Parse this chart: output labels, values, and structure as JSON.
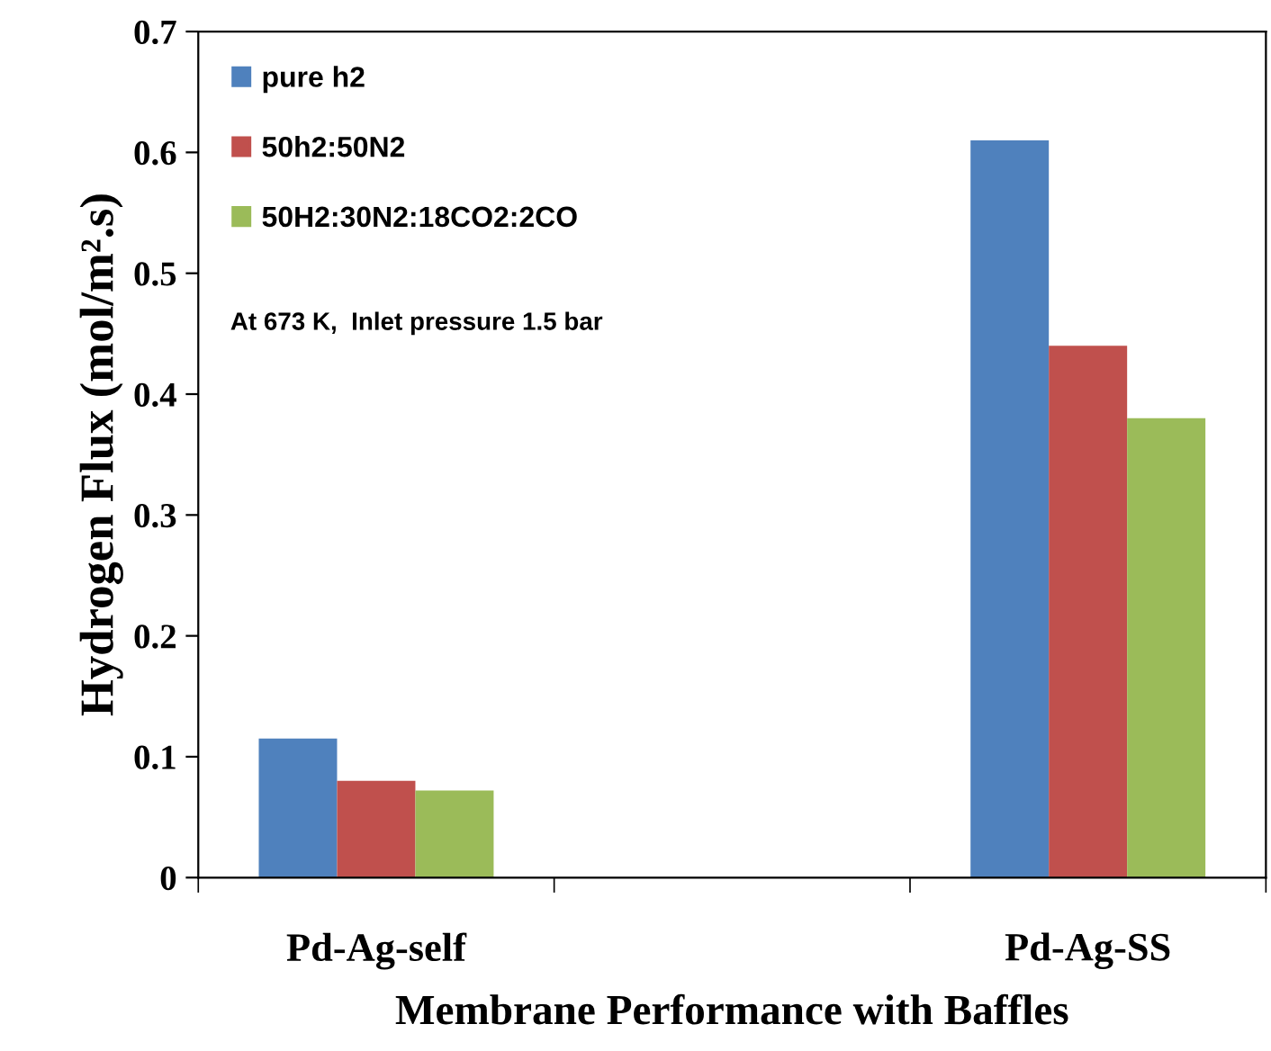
{
  "chart_data": {
    "type": "bar",
    "xlabel": "Membrane Performance with Baffles",
    "ylabel": "Hydrogen Flux (mol/m².s)",
    "categories": [
      "Pd-Ag-self",
      null,
      "Pd-Ag-SS"
    ],
    "series": [
      {
        "name": "pure h2",
        "color": "#4f81bd",
        "values": [
          0.115,
          null,
          0.61
        ]
      },
      {
        "name": "50h2:50N2",
        "color": "#c0504d",
        "values": [
          0.08,
          null,
          0.44
        ]
      },
      {
        "name": "50H2:30N2:18CO2:2CO",
        "color": "#9bbb59",
        "values": [
          0.072,
          null,
          0.38
        ]
      }
    ],
    "ylim": [
      0,
      0.7
    ],
    "yticks": [
      0,
      0.1,
      0.2,
      0.3,
      0.4,
      0.5,
      0.6,
      0.7
    ],
    "annotations": [
      "At 673 K,  Inlet pressure 1.5 bar"
    ],
    "legend": "top left",
    "grid": false
  }
}
